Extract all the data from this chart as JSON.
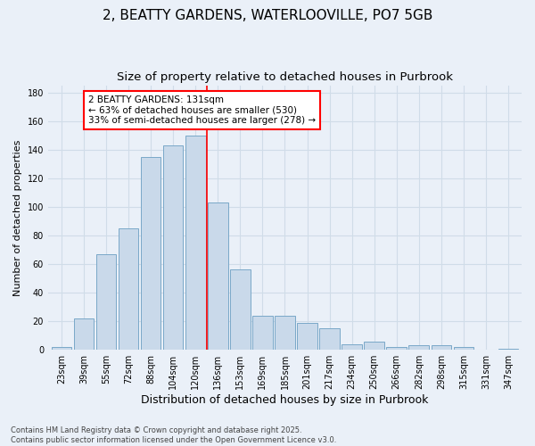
{
  "title": "2, BEATTY GARDENS, WATERLOOVILLE, PO7 5GB",
  "subtitle": "Size of property relative to detached houses in Purbrook",
  "xlabel": "Distribution of detached houses by size in Purbrook",
  "ylabel": "Number of detached properties",
  "categories": [
    "23sqm",
    "39sqm",
    "55sqm",
    "72sqm",
    "88sqm",
    "104sqm",
    "120sqm",
    "136sqm",
    "153sqm",
    "169sqm",
    "185sqm",
    "201sqm",
    "217sqm",
    "234sqm",
    "250sqm",
    "266sqm",
    "282sqm",
    "298sqm",
    "315sqm",
    "331sqm",
    "347sqm"
  ],
  "values": [
    2,
    22,
    67,
    85,
    135,
    143,
    150,
    103,
    56,
    24,
    24,
    19,
    15,
    4,
    6,
    2,
    3,
    3,
    2,
    0,
    1
  ],
  "bar_color": "#c9d9ea",
  "bar_edge_color": "#7aa8c8",
  "grid_color": "#d0dce8",
  "bg_color": "#eaf0f8",
  "annotation_text": "2 BEATTY GARDENS: 131sqm\n← 63% of detached houses are smaller (530)\n33% of semi-detached houses are larger (278) →",
  "ylim": [
    0,
    185
  ],
  "yticks": [
    0,
    20,
    40,
    60,
    80,
    100,
    120,
    140,
    160,
    180
  ],
  "footnote": "Contains HM Land Registry data © Crown copyright and database right 2025.\nContains public sector information licensed under the Open Government Licence v3.0.",
  "title_fontsize": 11,
  "subtitle_fontsize": 9.5,
  "xlabel_fontsize": 9,
  "ylabel_fontsize": 8,
  "tick_fontsize": 7,
  "annotation_fontsize": 7.5
}
